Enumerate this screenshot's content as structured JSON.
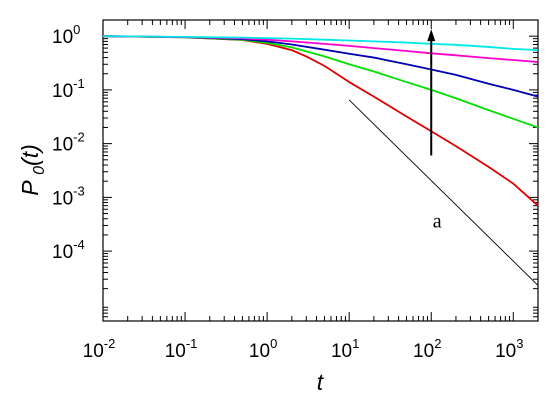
{
  "chart_data": {
    "type": "line",
    "xlabel": "t",
    "ylabel": "P0(t)",
    "x_scale": "log",
    "y_scale": "log",
    "xlim": [
      0.01,
      2000
    ],
    "ylim": [
      5e-06,
      2
    ],
    "grid": false,
    "legend": "none",
    "x_ticks": [
      {
        "value": 0.01,
        "base": "10",
        "exp": "-2"
      },
      {
        "value": 0.1,
        "base": "10",
        "exp": "-1"
      },
      {
        "value": 1,
        "base": "10",
        "exp": "0"
      },
      {
        "value": 10,
        "base": "10",
        "exp": "1"
      },
      {
        "value": 100,
        "base": "10",
        "exp": "2"
      },
      {
        "value": 1000,
        "base": "10",
        "exp": "3"
      }
    ],
    "y_ticks": [
      {
        "value": 1,
        "base": "10",
        "exp": "0"
      },
      {
        "value": 0.1,
        "base": "10",
        "exp": "-1"
      },
      {
        "value": 0.01,
        "base": "10",
        "exp": "-2"
      },
      {
        "value": 0.001,
        "base": "10",
        "exp": "-3"
      },
      {
        "value": 0.0001,
        "base": "10",
        "exp": "-4"
      }
    ],
    "series": [
      {
        "color": "#e00000",
        "x": [
          0.01,
          0.1,
          0.5,
          1,
          2,
          3,
          5,
          10,
          20,
          50,
          100,
          200,
          500,
          1000,
          2000
        ],
        "y": [
          1.0,
          0.95,
          0.85,
          0.72,
          0.55,
          0.42,
          0.28,
          0.14,
          0.075,
          0.032,
          0.017,
          0.009,
          0.0037,
          0.0018,
          0.0007
        ]
      },
      {
        "color": "#00e000",
        "x": [
          0.01,
          0.1,
          0.5,
          1,
          2,
          5,
          10,
          20,
          50,
          100,
          200,
          500,
          1000,
          2000
        ],
        "y": [
          1.0,
          0.95,
          0.86,
          0.75,
          0.62,
          0.42,
          0.3,
          0.22,
          0.14,
          0.1,
          0.07,
          0.042,
          0.029,
          0.02
        ]
      },
      {
        "color": "#0000b0",
        "x": [
          0.01,
          0.1,
          0.5,
          1,
          2,
          5,
          10,
          20,
          50,
          100,
          200,
          500,
          1000,
          2000
        ],
        "y": [
          1.0,
          0.96,
          0.88,
          0.8,
          0.7,
          0.56,
          0.47,
          0.4,
          0.3,
          0.24,
          0.19,
          0.13,
          0.1,
          0.075
        ]
      },
      {
        "color": "#ff00d0",
        "x": [
          0.01,
          0.1,
          0.5,
          1,
          2,
          5,
          10,
          20,
          50,
          100,
          200,
          500,
          1000,
          2000
        ],
        "y": [
          1.0,
          0.96,
          0.91,
          0.86,
          0.8,
          0.72,
          0.66,
          0.6,
          0.53,
          0.48,
          0.44,
          0.39,
          0.36,
          0.33
        ]
      },
      {
        "color": "#00e8e8",
        "x": [
          0.01,
          0.1,
          0.5,
          1,
          2,
          5,
          10,
          20,
          50,
          100,
          200,
          500,
          1000,
          2000
        ],
        "y": [
          1.0,
          0.97,
          0.94,
          0.92,
          0.9,
          0.86,
          0.83,
          0.8,
          0.76,
          0.72,
          0.69,
          0.63,
          0.58,
          0.55
        ]
      }
    ],
    "reference_line": {
      "label": "a",
      "color": "#000000",
      "x": [
        10,
        2000
      ],
      "y": [
        0.065,
        2.3e-05
      ]
    },
    "arrow": {
      "color": "#000000",
      "x": 100,
      "y_from": 0.006,
      "y_to": 1.35
    },
    "annotations": [
      {
        "text": "a",
        "x": 100,
        "y": 0.00065
      }
    ]
  }
}
